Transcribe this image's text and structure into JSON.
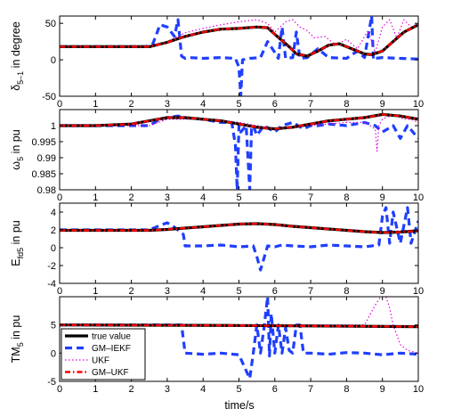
{
  "chart_data": {
    "type": "line",
    "xlabel": "time/s",
    "colors": {
      "true": "#000000",
      "iekf": "#1f3fff",
      "ukf": "#e000e0",
      "gmukf": "#ff0000"
    },
    "legend": {
      "placement": "bottom-left of last panel",
      "entries": [
        "true value",
        "GM–IEKF",
        "UKF",
        "GM–UKF"
      ]
    },
    "panels": [
      {
        "ylabel_main": "δ",
        "ylabel_sub": "5–1",
        "ylabel_rest": " in degree",
        "xlim": [
          0,
          10
        ],
        "ylim": [
          -50,
          60
        ],
        "xticks": [
          "0",
          "1",
          "2",
          "3",
          "4",
          "5",
          "6",
          "7",
          "8",
          "9",
          "10"
        ],
        "yticks": [
          {
            "v": -50,
            "t": "-50"
          },
          {
            "v": 0,
            "t": "0"
          },
          {
            "v": 50,
            "t": "50"
          }
        ],
        "series": [
          {
            "key": "iekf",
            "x": [
              0,
              2.4,
              2.6,
              2.8,
              3.0,
              3.2,
              3.3,
              3.4,
              3.5,
              3.6,
              4.0,
              4.5,
              4.9,
              5.0,
              5.05,
              5.1,
              5.3,
              5.6,
              5.8,
              6.0,
              6.1,
              6.2,
              6.3,
              6.5,
              6.6,
              6.7,
              6.9,
              7.2,
              7.5,
              8.0,
              8.3,
              8.5,
              8.7,
              8.75,
              8.8,
              9.0,
              9.5,
              10
            ],
            "y": [
              18,
              18,
              22,
              48,
              45,
              32,
              55,
              5,
              2,
              3,
              2,
              3,
              2,
              -10,
              -50,
              0,
              2,
              3,
              25,
              10,
              2,
              45,
              2,
              3,
              38,
              2,
              3,
              15,
              3,
              2,
              12,
              3,
              60,
              0,
              2,
              3,
              2,
              1
            ]
          },
          {
            "key": "ukf",
            "x": [
              0,
              2.5,
              3.0,
              3.5,
              4.0,
              4.5,
              5.0,
              5.5,
              5.8,
              6.0,
              6.3,
              6.5,
              6.7,
              6.9,
              7.1,
              7.4,
              7.7,
              8.0,
              8.3,
              8.6,
              8.8,
              9.0,
              9.2,
              9.4,
              9.6,
              9.8,
              10
            ],
            "y": [
              18,
              18,
              25,
              37,
              43,
              48,
              52,
              55,
              50,
              38,
              52,
              55,
              45,
              40,
              30,
              32,
              20,
              28,
              15,
              40,
              10,
              45,
              55,
              30,
              55,
              45,
              50
            ]
          },
          {
            "key": "true",
            "x": [
              0,
              2.5,
              3.0,
              3.5,
              4.0,
              4.5,
              5.0,
              5.5,
              5.8,
              6.0,
              6.4,
              6.6,
              6.9,
              7.2,
              7.5,
              7.8,
              8.2,
              8.5,
              8.7,
              9.0,
              9.3,
              9.6,
              10
            ],
            "y": [
              18,
              18,
              24,
              32,
              38,
              42,
              43,
              45,
              44,
              35,
              18,
              8,
              5,
              12,
              20,
              22,
              14,
              8,
              7,
              12,
              25,
              38,
              48
            ]
          },
          {
            "key": "gmukf",
            "x": [
              0,
              2.5,
              3.0,
              3.5,
              4.0,
              4.5,
              5.0,
              5.5,
              5.8,
              6.0,
              6.4,
              6.6,
              6.9,
              7.2,
              7.5,
              7.8,
              8.2,
              8.5,
              8.7,
              9.0,
              9.3,
              9.6,
              10
            ],
            "y": [
              18,
              18,
              24,
              32,
              38,
              42,
              43,
              45,
              44,
              35,
              18,
              8,
              5,
              12,
              20,
              22,
              14,
              8,
              7,
              12,
              25,
              38,
              48
            ]
          }
        ]
      },
      {
        "ylabel_main": "ω",
        "ylabel_sub": "5",
        "ylabel_rest": " in pu",
        "xlim": [
          0,
          10
        ],
        "ylim": [
          0.98,
          1.005
        ],
        "xticks": [
          "0",
          "1",
          "2",
          "3",
          "4",
          "5",
          "6",
          "7",
          "8",
          "9",
          "10"
        ],
        "yticks": [
          {
            "v": 0.98,
            "t": "0.98"
          },
          {
            "v": 0.985,
            "t": "0.985"
          },
          {
            "v": 0.99,
            "t": "0.99"
          },
          {
            "v": 0.995,
            "t": "0.995"
          },
          {
            "v": 1.0,
            "t": "1"
          }
        ],
        "series": [
          {
            "key": "iekf",
            "x": [
              0,
              2.5,
              2.8,
              3.0,
              3.3,
              3.5,
              4.0,
              4.5,
              4.8,
              4.9,
              4.95,
              5.0,
              5.05,
              5.2,
              5.3,
              5.35,
              5.4,
              5.5,
              5.7,
              6.0,
              6.2,
              6.5,
              6.8,
              7.0,
              7.2,
              7.5,
              8.0,
              8.5,
              8.8,
              9.0,
              9.3,
              9.5,
              9.7,
              10
            ],
            "y": [
              1.0,
              1.0,
              1.002,
              1.0025,
              1.003,
              1.0025,
              1.002,
              1.001,
              1.001,
              0.994,
              0.98,
              1.0,
              0.998,
              1.0,
              0.98,
              0.999,
              1.0,
              0.997,
              1.0,
              0.998,
              1.0,
              1.001,
              0.999,
              1.0,
              1.0,
              1.0005,
              1.0,
              1.001,
              1.0,
              0.998,
              1.0,
              0.996,
              1.0,
              0.996
            ]
          },
          {
            "key": "ukf",
            "x": [
              0,
              2.5,
              3.0,
              4.0,
              5.0,
              5.5,
              6.0,
              6.5,
              7.0,
              7.5,
              8.0,
              8.5,
              8.8,
              8.85,
              8.9,
              9.0,
              9.2,
              9.4,
              9.6,
              9.8,
              10
            ],
            "y": [
              1.0,
              1.0,
              1.002,
              1.002,
              1.001,
              1.0,
              0.999,
              0.9995,
              1.0,
              1.0005,
              1.001,
              1.001,
              0.999,
              0.992,
              1.0,
              1.002,
              1.003,
              1.003,
              1.002,
              1.002,
              1.001
            ]
          },
          {
            "key": "true",
            "x": [
              0,
              1.0,
              2.0,
              2.5,
              3.0,
              3.5,
              4.0,
              4.5,
              5.0,
              5.5,
              6.0,
              6.5,
              7.0,
              7.5,
              8.0,
              8.5,
              9.0,
              9.5,
              10
            ],
            "y": [
              1.0,
              1.0,
              1.0005,
              1.0015,
              1.0025,
              1.0025,
              1.002,
              1.0015,
              1.0005,
              0.9995,
              0.999,
              0.9995,
              1.0005,
              1.0015,
              1.002,
              1.0025,
              1.0035,
              1.003,
              1.002
            ]
          },
          {
            "key": "gmukf",
            "x": [
              0,
              1.0,
              2.0,
              2.5,
              3.0,
              3.5,
              4.0,
              4.5,
              5.0,
              5.5,
              6.0,
              6.5,
              7.0,
              7.5,
              8.0,
              8.5,
              9.0,
              9.5,
              10
            ],
            "y": [
              1.0,
              1.0,
              1.0005,
              1.0015,
              1.0025,
              1.0025,
              1.002,
              1.0015,
              1.0005,
              0.9995,
              0.999,
              0.9995,
              1.0005,
              1.0015,
              1.002,
              1.0025,
              1.0035,
              1.003,
              1.002
            ]
          }
        ]
      },
      {
        "ylabel_main": "E",
        "ylabel_sub": "fd5",
        "ylabel_rest": " in pu",
        "xlim": [
          0,
          10
        ],
        "ylim": [
          -4,
          5
        ],
        "xticks": [
          "0",
          "1",
          "2",
          "3",
          "4",
          "5",
          "6",
          "7",
          "8",
          "9",
          "10"
        ],
        "yticks": [
          {
            "v": -4,
            "t": "-4"
          },
          {
            "v": -2,
            "t": "-2"
          },
          {
            "v": 0,
            "t": "0"
          },
          {
            "v": 2,
            "t": "2"
          },
          {
            "v": 4,
            "t": "4"
          }
        ],
        "series": [
          {
            "key": "iekf",
            "x": [
              0,
              2.5,
              2.8,
              3.0,
              3.2,
              3.45,
              3.5,
              4.0,
              4.5,
              5.0,
              5.4,
              5.5,
              5.6,
              5.8,
              6.0,
              6.2,
              6.5,
              7.0,
              7.5,
              8.0,
              8.5,
              8.9,
              9.0,
              9.1,
              9.2,
              9.3,
              9.5,
              9.7,
              9.8,
              10
            ],
            "y": [
              2.0,
              2.0,
              2.5,
              2.8,
              2.3,
              1.5,
              0.2,
              0.2,
              0.3,
              0.1,
              0.2,
              -1.0,
              -2.5,
              0.2,
              0.1,
              0.3,
              0.2,
              0.1,
              0.3,
              0.2,
              0.1,
              0.3,
              3.5,
              4.5,
              0.5,
              4.0,
              0.5,
              4.5,
              0.5,
              3.0
            ]
          },
          {
            "key": "ukf",
            "x": [
              0,
              2.5,
              3.0,
              4.0,
              5.0,
              5.5,
              6.0,
              7.0,
              8.0,
              9.0,
              9.5,
              10
            ],
            "y": [
              2.0,
              2.0,
              2.1,
              2.3,
              2.6,
              2.7,
              2.6,
              2.2,
              1.9,
              1.8,
              1.9,
              2.0
            ]
          },
          {
            "key": "true",
            "x": [
              0,
              2.5,
              3.0,
              3.5,
              4.0,
              4.5,
              5.0,
              5.5,
              6.0,
              6.5,
              7.0,
              7.5,
              8.0,
              8.5,
              9.0,
              9.5,
              10
            ],
            "y": [
              1.95,
              1.95,
              2.05,
              2.2,
              2.35,
              2.5,
              2.65,
              2.7,
              2.6,
              2.4,
              2.25,
              2.1,
              1.95,
              1.8,
              1.7,
              1.75,
              1.9
            ]
          },
          {
            "key": "gmukf",
            "x": [
              0,
              2.5,
              3.0,
              3.5,
              4.0,
              4.5,
              5.0,
              5.5,
              6.0,
              6.5,
              7.0,
              7.5,
              8.0,
              8.5,
              9.0,
              9.5,
              10
            ],
            "y": [
              1.95,
              1.95,
              2.05,
              2.2,
              2.35,
              2.5,
              2.65,
              2.7,
              2.6,
              2.4,
              2.25,
              2.1,
              1.95,
              1.8,
              1.7,
              1.75,
              1.9
            ]
          }
        ]
      },
      {
        "ylabel_main": "TM",
        "ylabel_sub": "5",
        "ylabel_rest": " in pu",
        "xlim": [
          0,
          10
        ],
        "ylim": [
          -5,
          10
        ],
        "xticks": [
          "0",
          "1",
          "2",
          "3",
          "4",
          "5",
          "6",
          "7",
          "8",
          "9",
          "10"
        ],
        "yticks": [
          {
            "v": -5,
            "t": "-5"
          },
          {
            "v": 0,
            "t": "0"
          },
          {
            "v": 5,
            "t": "5"
          }
        ],
        "series": [
          {
            "key": "iekf",
            "x": [
              0,
              3.4,
              3.5,
              4.0,
              4.5,
              5.0,
              5.3,
              5.4,
              5.5,
              5.6,
              5.7,
              5.8,
              5.85,
              5.9,
              6.0,
              6.1,
              6.2,
              6.3,
              6.4,
              6.5,
              6.6,
              6.7,
              6.8,
              7.0,
              7.5,
              8.0,
              8.5,
              9.0,
              9.5,
              10
            ],
            "y": [
              5.0,
              5.0,
              0.0,
              -0.2,
              0.0,
              -0.3,
              -4.5,
              0.0,
              5.0,
              0.0,
              4.5,
              10.0,
              -0.5,
              7.0,
              0.0,
              5.0,
              0.0,
              4.5,
              0.5,
              0.0,
              5.0,
              5.0,
              0.0,
              0.0,
              -0.2,
              0.1,
              0.0,
              -0.3,
              0.0,
              -0.2
            ]
          },
          {
            "key": "ukf",
            "x": [
              0,
              3.0,
              5.0,
              7.0,
              8.0,
              8.5,
              8.8,
              9.0,
              9.1,
              9.2,
              9.3,
              9.5,
              9.7,
              10
            ],
            "y": [
              5.0,
              5.0,
              4.9,
              5.0,
              5.0,
              5.0,
              8.5,
              10.5,
              10.0,
              8.0,
              5.0,
              1.5,
              0.5,
              0.0
            ]
          },
          {
            "key": "true",
            "x": [
              0,
              5.0,
              10
            ],
            "y": [
              5.0,
              4.9,
              4.7
            ]
          },
          {
            "key": "gmukf",
            "x": [
              0,
              5.0,
              10
            ],
            "y": [
              5.0,
              4.9,
              4.7
            ]
          }
        ]
      }
    ]
  }
}
